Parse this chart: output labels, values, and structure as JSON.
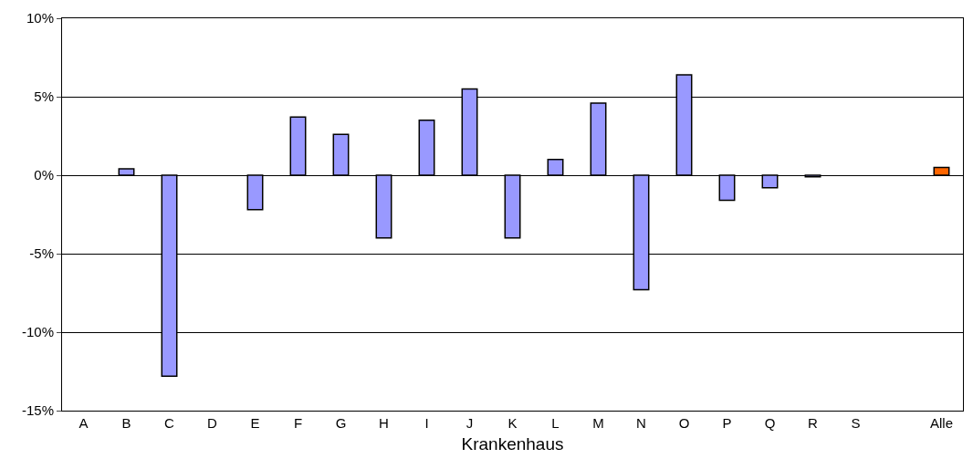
{
  "chart_data": {
    "type": "bar",
    "xlabel": "Krankenhaus",
    "categories": [
      "A",
      "B",
      "C",
      "D",
      "E",
      "F",
      "G",
      "H",
      "I",
      "J",
      "K",
      "L",
      "M",
      "N",
      "O",
      "P",
      "Q",
      "R",
      "S",
      null,
      "Alle"
    ],
    "values": [
      null,
      0.4,
      -12.8,
      null,
      -2.2,
      3.7,
      2.6,
      -4.0,
      3.5,
      5.5,
      -4.0,
      1.0,
      4.6,
      -7.3,
      6.4,
      -1.6,
      -0.8,
      -0.1,
      null,
      null,
      0.5
    ],
    "colors": [
      "#9999ff",
      "#9999ff",
      "#9999ff",
      "#9999ff",
      "#9999ff",
      "#9999ff",
      "#9999ff",
      "#9999ff",
      "#9999ff",
      "#9999ff",
      "#9999ff",
      "#9999ff",
      "#9999ff",
      "#9999ff",
      "#9999ff",
      "#9999ff",
      "#9999ff",
      "#9999ff",
      "#9999ff",
      "#9999ff",
      "#ff6600"
    ],
    "ylim": [
      -15,
      10
    ],
    "yticks": [
      {
        "value": -15,
        "label": "-15%"
      },
      {
        "value": -10,
        "label": "-10%"
      },
      {
        "value": -5,
        "label": "-5%"
      },
      {
        "value": 0,
        "label": "0%"
      },
      {
        "value": 5,
        "label": "5%"
      },
      {
        "value": 10,
        "label": "10%"
      }
    ],
    "grid": "y"
  }
}
